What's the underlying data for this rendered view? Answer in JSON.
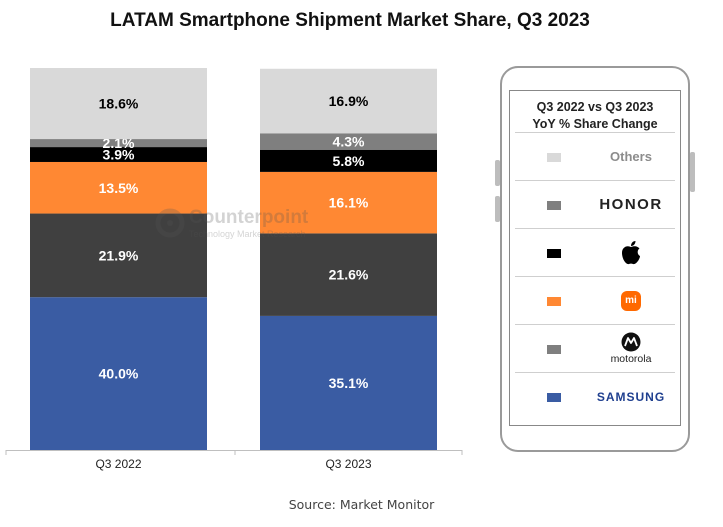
{
  "chart_data": {
    "type": "bar",
    "stacked": true,
    "title": "LATAM Smartphone Shipment Market Share, Q3 2023",
    "categories": [
      "Q3 2022",
      "Q3 2023"
    ],
    "ylim": [
      0,
      100
    ],
    "series": [
      {
        "key": "samsung",
        "color": "#3a5ca3",
        "label_color": "#ffffff",
        "values": [
          40.0,
          35.1
        ],
        "labels": [
          "40.0%",
          "35.1%"
        ]
      },
      {
        "key": "motorola",
        "color": "#404040",
        "label_color": "#ffffff",
        "values": [
          21.9,
          21.6
        ],
        "labels": [
          "21.9%",
          "21.6%"
        ]
      },
      {
        "key": "xiaomi",
        "color": "#ff8833",
        "label_color": "#ffffff",
        "values": [
          13.5,
          16.1
        ],
        "labels": [
          "13.5%",
          "16.1%"
        ]
      },
      {
        "key": "apple",
        "color": "#000000",
        "label_color": "#ffffff",
        "values": [
          3.9,
          5.8
        ],
        "labels": [
          "3.9%",
          "5.8%"
        ]
      },
      {
        "key": "honor",
        "color": "#7f7f7f",
        "label_color": "#ffffff",
        "values": [
          2.1,
          4.3
        ],
        "labels": [
          "2.1%",
          "4.3%"
        ]
      },
      {
        "key": "others",
        "color": "#d9d9d9",
        "label_color": "#000000",
        "values": [
          18.6,
          16.9
        ],
        "labels": [
          "18.6%",
          "16.9%"
        ]
      }
    ],
    "legend_placement": "right",
    "grid": false
  },
  "legend": {
    "title_line1": "Q3 2022 vs Q3 2023",
    "title_line2": "YoY % Share Change",
    "items": [
      {
        "key": "others",
        "brand_text": "Others",
        "color": "#d9d9d9"
      },
      {
        "key": "honor",
        "brand_text": "HONOR",
        "color": "#7f7f7f"
      },
      {
        "key": "apple",
        "icon": "apple-logo-icon",
        "color": "#000000"
      },
      {
        "key": "xiaomi",
        "icon": "xiaomi-logo-icon",
        "badge_text": "mi",
        "color": "#ff8833"
      },
      {
        "key": "motorola",
        "icon": "motorola-logo-icon",
        "brand_text": "motorola",
        "color": "#7f7f7f"
      },
      {
        "key": "samsung",
        "brand_text": "SAMSUNG",
        "color": "#3a5ca3"
      }
    ]
  },
  "watermark": {
    "name": "Counterpoint",
    "sub": "Technology Market Research"
  },
  "source": "Source: Market Monitor"
}
